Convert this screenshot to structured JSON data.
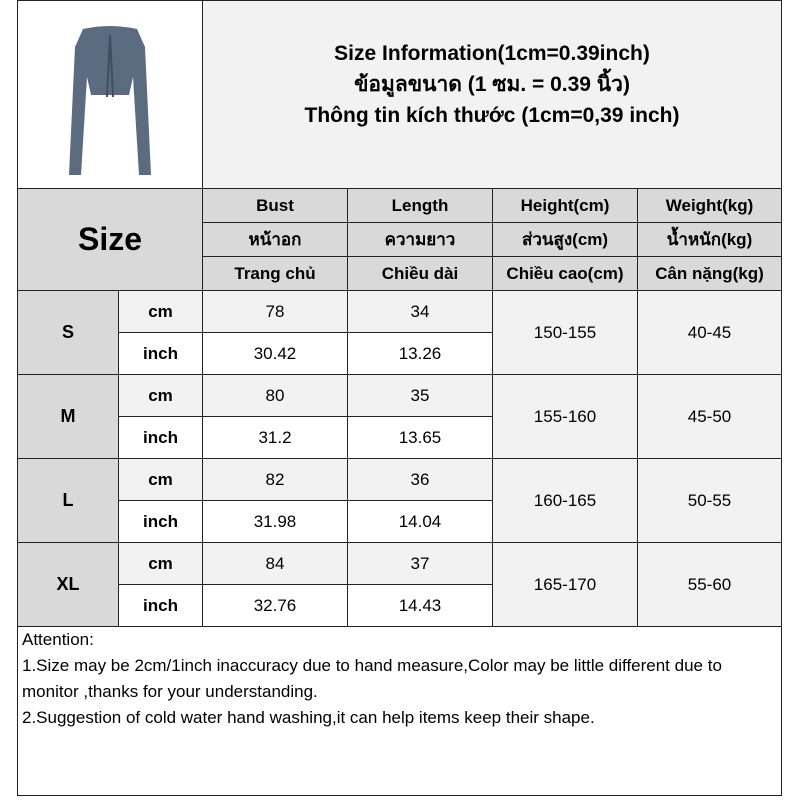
{
  "title": {
    "en": "Size Information(1cm=0.39inch)",
    "th": "ข้อมูลขนาด (1 ซม. = 0.39 นิ้ว)",
    "vi": "Thông tin kích thước (1cm=0,39 inch)"
  },
  "product_image": {
    "color": "#5b6b80"
  },
  "size_label": "Size",
  "columns": [
    {
      "en": "Bust",
      "th": "หน้าอก",
      "vi": "Trang chủ"
    },
    {
      "en": "Length",
      "th": "ความยาว",
      "vi": "Chiều dài"
    },
    {
      "en": "Height(cm)",
      "th": "ส่วนสูง(cm)",
      "vi": "Chiều cao(cm)"
    },
    {
      "en": "Weight(kg)",
      "th": "น้ำหนัก(kg)",
      "vi": "Cân nặng(kg)"
    }
  ],
  "units": {
    "cm": "cm",
    "inch": "inch"
  },
  "sizes": [
    {
      "size": "S",
      "bust_cm": "78",
      "length_cm": "34",
      "bust_inch": "30.42",
      "length_inch": "13.26",
      "height": "150-155",
      "weight": "40-45"
    },
    {
      "size": "M",
      "bust_cm": "80",
      "length_cm": "35",
      "bust_inch": "31.2",
      "length_inch": "13.65",
      "height": "155-160",
      "weight": "45-50"
    },
    {
      "size": "L",
      "bust_cm": "82",
      "length_cm": "36",
      "bust_inch": "31.98",
      "length_inch": "14.04",
      "height": "160-165",
      "weight": "50-55"
    },
    {
      "size": "XL",
      "bust_cm": "84",
      "length_cm": "37",
      "bust_inch": "32.76",
      "length_inch": "14.43",
      "height": "165-170",
      "weight": "55-60"
    }
  ],
  "attention": {
    "heading": "Attention:",
    "note1": "1.Size may be 2cm/1inch inaccuracy due to hand measure,Color may be little different due to monitor ,thanks for your understanding.",
    "note2": "2.Suggestion of cold water hand washing,it can help items keep their shape."
  }
}
